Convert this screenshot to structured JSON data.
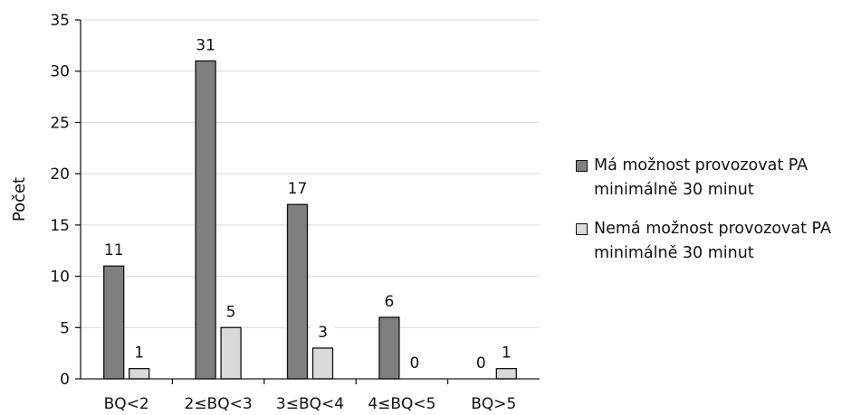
{
  "chart_data": {
    "type": "bar",
    "categories": [
      "BQ<2",
      "2≤BQ<3",
      "3≤BQ<4",
      "4≤BQ<5",
      "BQ>5"
    ],
    "series": [
      {
        "name": "Má možnost provozovat PA minimálně 30 minut",
        "values": [
          11,
          31,
          17,
          6,
          0
        ],
        "color": "#7f7f7f"
      },
      {
        "name": "Nemá možnost provozovat PA minimálně 30 minut",
        "values": [
          1,
          5,
          3,
          0,
          1
        ],
        "color": "#d9d9d9"
      }
    ],
    "ylabel": "Počet",
    "xlabel": "",
    "ylim": [
      0,
      35
    ],
    "yticks": [
      0,
      5,
      10,
      15,
      20,
      25,
      30,
      35
    ],
    "gridlines": true,
    "data_labels": true,
    "legend_position": "right"
  }
}
